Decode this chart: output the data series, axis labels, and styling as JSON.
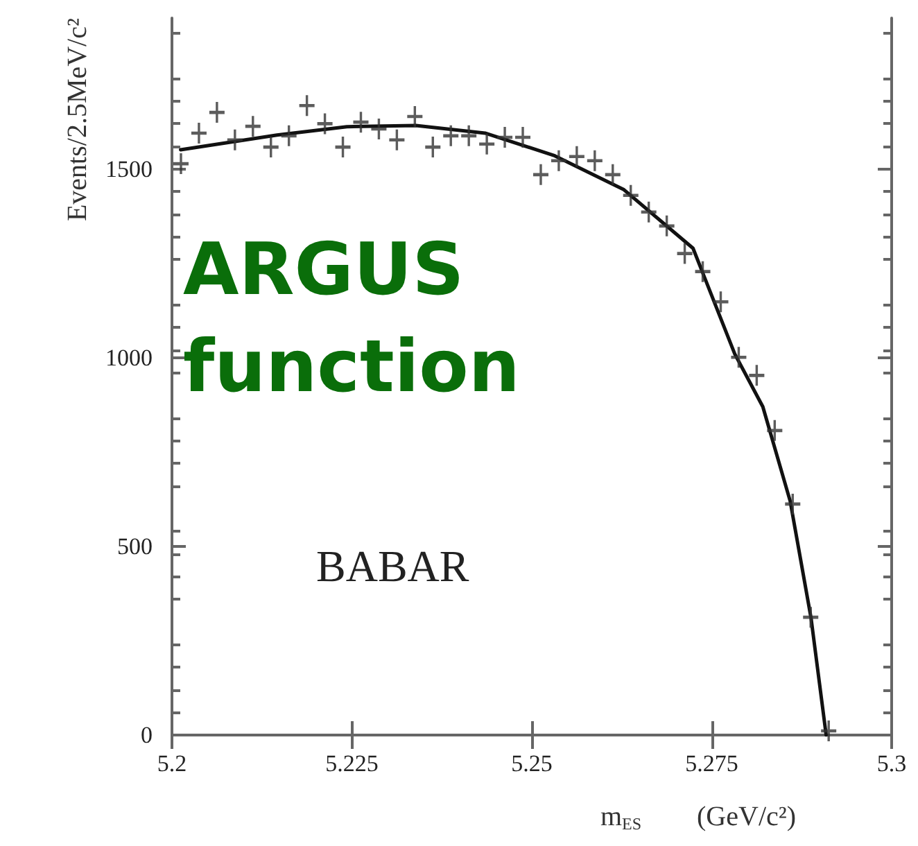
{
  "chart_data": {
    "type": "scatter",
    "xlabel": "m$_{ES}$        (GeV/c²)",
    "ylabel": "Events/2.5MeV/c²",
    "xlim": [
      5.2,
      5.3
    ],
    "xticks": [
      5.2,
      5.225,
      5.25,
      5.275,
      5.3
    ],
    "ylim": [
      0,
      1900
    ],
    "yticks": [
      0,
      500,
      1000,
      1500
    ],
    "grid": false,
    "marker": "cross",
    "series": [
      {
        "color": "#333333",
        "x": [
          5.20125,
          5.20375,
          5.20625,
          5.20875,
          5.21125,
          5.21375,
          5.21625,
          5.21875,
          5.22125,
          5.22375,
          5.22625,
          5.22875,
          5.23125,
          5.23375,
          5.23625,
          5.23875,
          5.24125,
          5.24375,
          5.24625,
          5.24875,
          5.25125,
          5.25375,
          5.25625,
          5.25875,
          5.26125,
          5.26375,
          5.26625,
          5.26875,
          5.27125,
          5.27375,
          5.27625,
          5.27875,
          5.28125,
          5.28375,
          5.28625,
          5.28875,
          5.29125
        ],
        "values": [
          1514,
          1595,
          1650,
          1577,
          1613,
          1558,
          1588,
          1668,
          1620,
          1558,
          1624,
          1606,
          1577,
          1639,
          1558,
          1588,
          1588,
          1566,
          1584,
          1584,
          1485,
          1522,
          1533,
          1522,
          1485,
          1430,
          1386,
          1349,
          1276,
          1228,
          1148,
          1001,
          953,
          807,
          612,
          312,
          11
        ]
      },
      {
        "type": "line",
        "color": "#111111",
        "marker": "none",
        "line_style": "solid",
        "x": [
          5.2012,
          5.2146,
          5.2243,
          5.2339,
          5.2435,
          5.2532,
          5.2628,
          5.2724,
          5.2782,
          5.2821,
          5.2859,
          5.2888,
          5.2909
        ],
        "values": [
          1551,
          1590,
          1612,
          1615,
          1595,
          1535,
          1445,
          1290,
          1010,
          870,
          620,
          310,
          0
        ]
      }
    ],
    "annotations": [
      "ARGUS function",
      "BABAR"
    ]
  }
}
